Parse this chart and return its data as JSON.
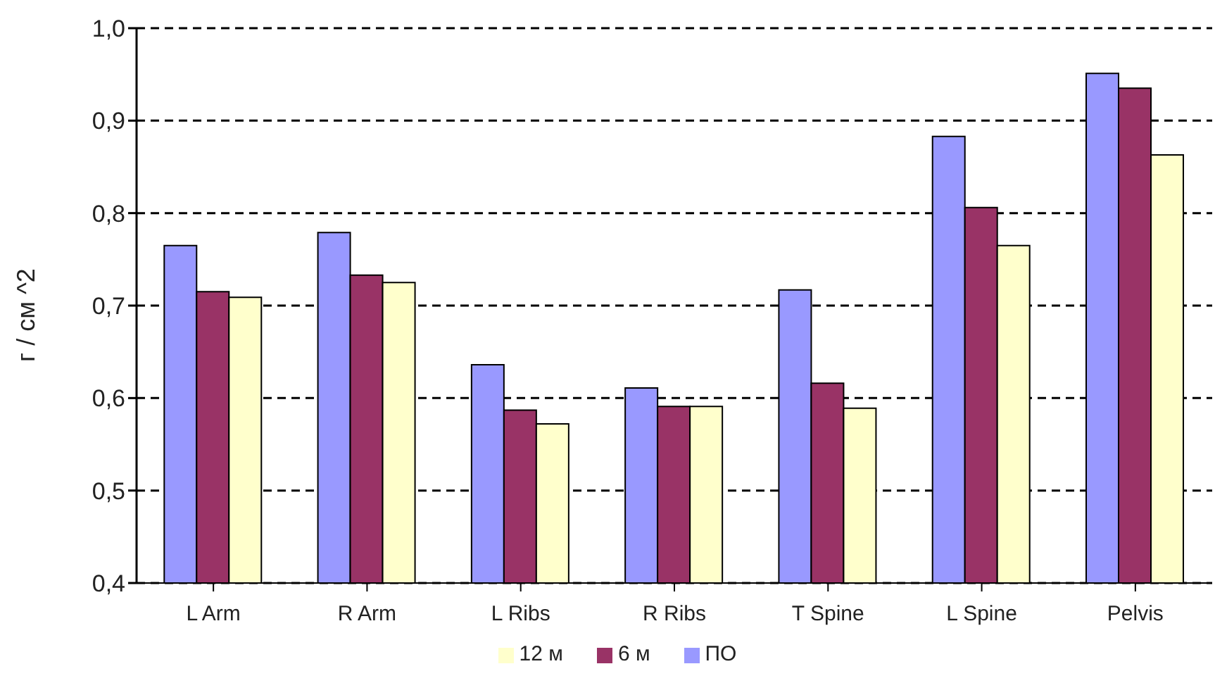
{
  "chart_data": {
    "type": "bar",
    "ylabel": "г / см ^2",
    "categories": [
      "L Arm",
      "R Arm",
      "L Ribs",
      "R Ribs",
      "T Spine",
      "L Spine",
      "Pelvis"
    ],
    "series": [
      {
        "name": "ПО",
        "color": "#9999ff",
        "values": [
          0.765,
          0.779,
          0.636,
          0.611,
          0.717,
          0.883,
          0.951
        ]
      },
      {
        "name": "6 м",
        "color": "#993366",
        "values": [
          0.715,
          0.733,
          0.587,
          0.591,
          0.616,
          0.806,
          0.935
        ]
      },
      {
        "name": "12 м",
        "color": "#ffffcc",
        "values": [
          0.709,
          0.725,
          0.572,
          0.591,
          0.589,
          0.765,
          0.863
        ]
      }
    ],
    "ylim": [
      0.4,
      1.0
    ],
    "yticks": [
      {
        "value": 0.4,
        "label": "0,4"
      },
      {
        "value": 0.5,
        "label": "0,5"
      },
      {
        "value": 0.6,
        "label": "0,6"
      },
      {
        "value": 0.7,
        "label": "0,7"
      },
      {
        "value": 0.8,
        "label": "0,8"
      },
      {
        "value": 0.9,
        "label": "0,9"
      },
      {
        "value": 1.0,
        "label": "1,0"
      }
    ],
    "grid": "y",
    "legend": "bottom"
  }
}
